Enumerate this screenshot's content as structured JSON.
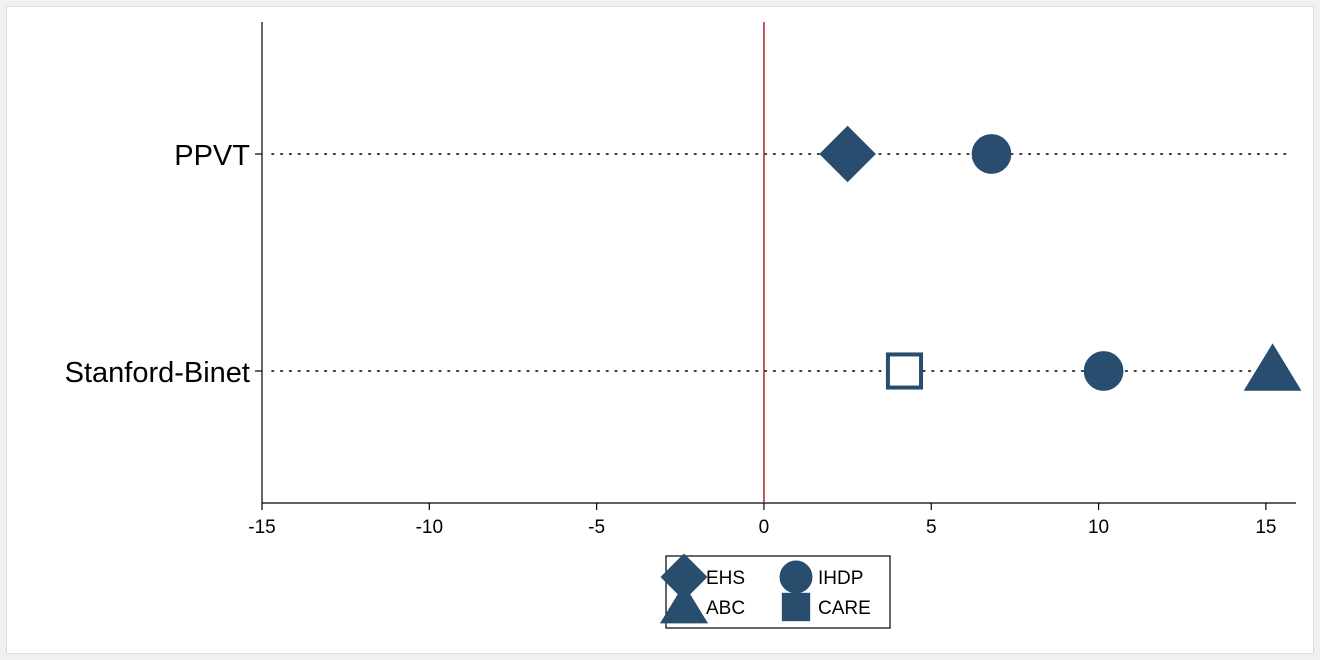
{
  "chart_data": {
    "type": "scatter",
    "title": "",
    "xlabel": "",
    "ylabel": "",
    "xlim": [
      -15,
      15.9
    ],
    "xticks": [
      "-15",
      "-10",
      "-5",
      "0",
      "5",
      "10",
      "15"
    ],
    "xtick_values": [
      -15,
      -10,
      -5,
      0,
      5,
      10,
      15
    ],
    "categories": [
      "PPVT",
      "Stanford-Binet"
    ],
    "reference_line": {
      "x": 0,
      "color": "#b0323a"
    },
    "grid": false,
    "legend_position": "bottom-center",
    "series": [
      {
        "name": "EHS",
        "marker": "diamond",
        "filled": true,
        "points": [
          {
            "category": "PPVT",
            "x": 2.5
          }
        ]
      },
      {
        "name": "IHDP",
        "marker": "circle",
        "filled": true,
        "points": [
          {
            "category": "PPVT",
            "x": 6.8
          },
          {
            "category": "Stanford-Binet",
            "x": 10.15
          }
        ]
      },
      {
        "name": "ABC",
        "marker": "triangle",
        "filled": true,
        "points": [
          {
            "category": "Stanford-Binet",
            "x": 15.2
          }
        ]
      },
      {
        "name": "CARE",
        "marker": "square",
        "filled": true,
        "points": [
          {
            "category": "Stanford-Binet",
            "x": 4.2,
            "filled": false
          }
        ]
      }
    ],
    "colors": {
      "marker": "#294d6e",
      "axis": "#000000"
    }
  }
}
